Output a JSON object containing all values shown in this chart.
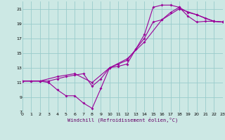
{
  "xlabel": "Windchill (Refroidissement éolien,°C)",
  "bg_color": "#cce8e4",
  "grid_color": "#99cccc",
  "line_color": "#990099",
  "xmin": 0,
  "xmax": 23,
  "ymin": 7,
  "ymax": 22,
  "yticks": [
    7,
    9,
    11,
    13,
    15,
    17,
    19,
    21
  ],
  "xticks": [
    0,
    1,
    2,
    3,
    4,
    5,
    6,
    7,
    8,
    9,
    10,
    11,
    12,
    13,
    14,
    15,
    16,
    17,
    18,
    19,
    20,
    21,
    22,
    23
  ],
  "curve1_x": [
    0,
    1,
    2,
    3,
    4,
    5,
    6,
    7,
    8,
    9,
    10,
    11,
    12,
    13,
    14,
    15,
    16,
    17,
    18,
    19,
    20,
    21,
    22,
    23
  ],
  "curve1_y": [
    11.2,
    11.2,
    11.2,
    11.0,
    10.0,
    9.2,
    9.2,
    8.2,
    7.5,
    10.2,
    13.0,
    13.2,
    13.5,
    15.5,
    17.5,
    21.2,
    21.5,
    21.5,
    21.2,
    20.0,
    19.2,
    19.3,
    19.3,
    19.2
  ],
  "curve2_x": [
    0,
    1,
    2,
    3,
    4,
    5,
    6,
    7,
    8,
    9,
    10,
    11,
    12,
    13,
    14,
    15,
    16,
    17,
    18,
    19,
    20,
    21,
    22,
    23
  ],
  "curve2_y": [
    11.2,
    11.2,
    11.2,
    11.2,
    11.5,
    11.8,
    12.0,
    12.2,
    10.5,
    11.5,
    13.0,
    13.5,
    14.0,
    15.5,
    17.0,
    19.2,
    19.5,
    20.5,
    21.2,
    20.5,
    20.2,
    19.7,
    19.3,
    19.2
  ],
  "curve3_x": [
    0,
    2,
    4,
    6,
    8,
    10,
    12,
    14,
    16,
    18,
    20,
    22,
    23
  ],
  "curve3_y": [
    11.2,
    11.2,
    11.8,
    12.2,
    11.0,
    13.0,
    14.2,
    16.5,
    19.5,
    21.0,
    20.2,
    19.3,
    19.2
  ]
}
